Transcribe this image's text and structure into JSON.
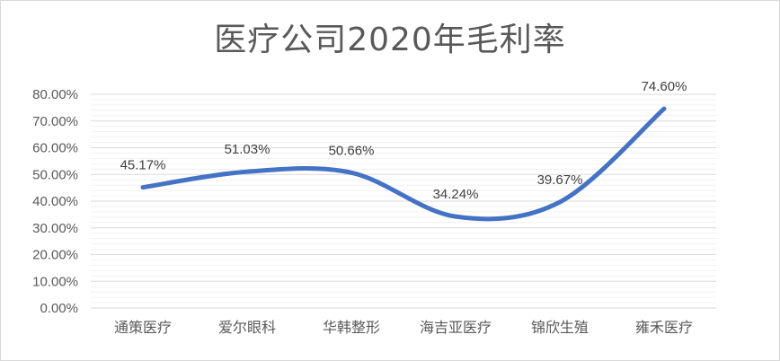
{
  "chart_data": {
    "type": "line",
    "title": "医疗公司2020年毛利率",
    "categories": [
      "通策医疗",
      "爱尔眼科",
      "华韩整形",
      "海吉亚医疗",
      "锦欣生殖",
      "雍禾医疗"
    ],
    "values": [
      45.17,
      51.03,
      50.66,
      34.24,
      39.67,
      74.6
    ],
    "data_labels": [
      "45.17%",
      "51.03%",
      "50.66%",
      "34.24%",
      "39.67%",
      "74.60%"
    ],
    "y_ticks": [
      "0.00%",
      "10.00%",
      "20.00%",
      "30.00%",
      "40.00%",
      "50.00%",
      "60.00%",
      "70.00%",
      "80.00%"
    ],
    "ylim": [
      0,
      80
    ],
    "smooth": true,
    "grid": true,
    "legend": "none",
    "line_color": "#4472c4",
    "grid_color": "#d9d9d9"
  }
}
